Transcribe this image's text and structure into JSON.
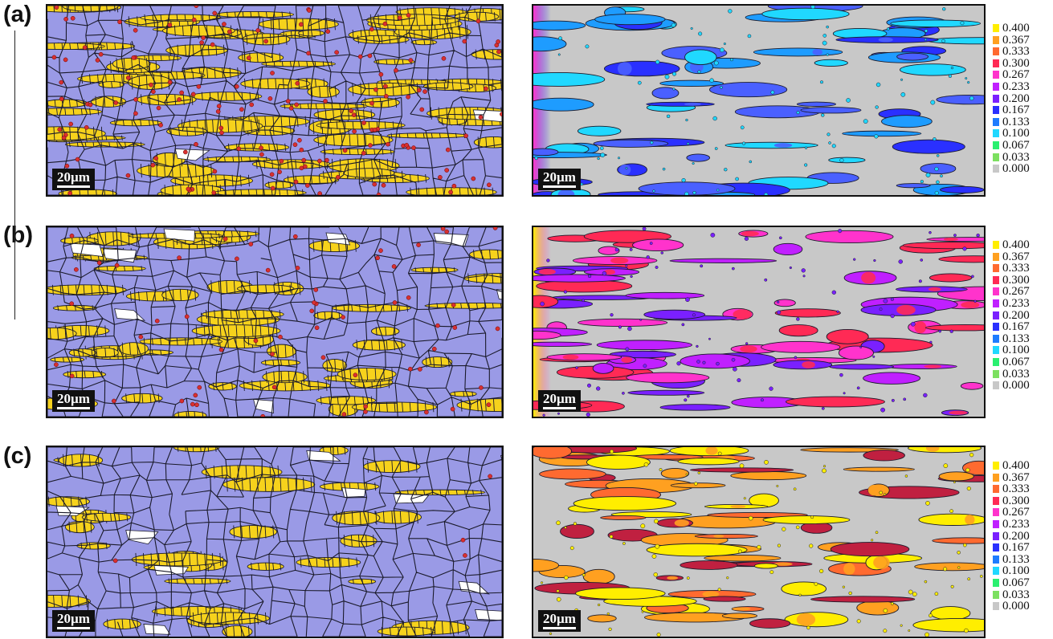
{
  "rows": [
    {
      "label": "(a)",
      "scale": "20µm",
      "mapClass": "a"
    },
    {
      "label": "(b)",
      "scale": "20µm",
      "mapClass": "b"
    },
    {
      "label": "(c)",
      "scale": "20µm",
      "mapClass": "c"
    }
  ],
  "legend": {
    "values": [
      "0.400",
      "0.367",
      "0.333",
      "0.300",
      "0.267",
      "0.233",
      "0.200",
      "0.167",
      "0.133",
      "0.100",
      "0.067",
      "0.033",
      "0.000"
    ],
    "colors": [
      "#ffee00",
      "#ffa020",
      "#ff6a30",
      "#ff2a55",
      "#ff33cc",
      "#c020ff",
      "#7a20ff",
      "#2a30ff",
      "#1e7cff",
      "#20d8ff",
      "#2af070",
      "#7ce060",
      "#c8c8c8"
    ]
  },
  "colors": {
    "grain_blue": "#9a9ae6",
    "phase_yellow": "#f6d21c",
    "boundary": "#1a1a2a",
    "map_gray": "#c8c8c8",
    "red_dot": "#d83030"
  }
}
